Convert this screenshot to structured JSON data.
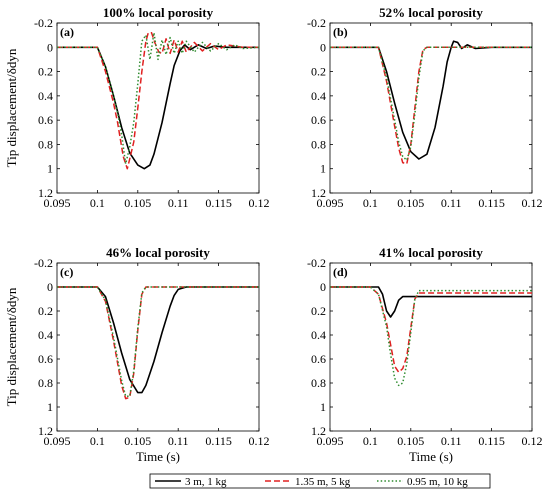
{
  "chart_data": [
    {
      "type": "line",
      "panel_label": "(a)",
      "title": "100% local porosity",
      "xlabel": "",
      "ylabel": "Tip displacement/δdyn",
      "xlim": [
        0.095,
        0.12
      ],
      "ylim": [
        -0.2,
        1.2
      ],
      "y_reversed": true,
      "x_ticks": [
        "0.095",
        "0.1",
        "0.105",
        "0.11",
        "0.115",
        "0.12"
      ],
      "y_ticks": [
        "-0.2",
        "0",
        "0.2",
        "0.4",
        "0.6",
        "0.8",
        "1",
        "1.2"
      ],
      "series": [
        {
          "name": "3 m, 1 kg",
          "color": "#000000",
          "x": [
            0.095,
            0.1,
            0.101,
            0.102,
            0.103,
            0.104,
            0.105,
            0.1058,
            0.1065,
            0.107,
            0.108,
            0.109,
            0.1095,
            0.1102,
            0.1108,
            0.1115,
            0.1125,
            0.1135,
            0.1145,
            0.116,
            0.118,
            0.12
          ],
          "y": [
            0,
            0,
            0.16,
            0.4,
            0.66,
            0.87,
            0.97,
            1.0,
            0.97,
            0.88,
            0.62,
            0.3,
            0.15,
            0.03,
            -0.02,
            0.02,
            -0.02,
            0.01,
            -0.01,
            0.0,
            0.0,
            0.0
          ]
        },
        {
          "name": "1.35 m, 5 kg",
          "color": "#e02020",
          "x": [
            0.095,
            0.1,
            0.101,
            0.102,
            0.1025,
            0.1032,
            0.1037,
            0.104,
            0.1045,
            0.105,
            0.1055,
            0.106,
            0.1063,
            0.1067,
            0.1071,
            0.1076,
            0.108,
            0.1085,
            0.109,
            0.1095,
            0.11,
            0.1105,
            0.111,
            0.112,
            0.113,
            0.114,
            0.115,
            0.116,
            0.118,
            0.12
          ],
          "y": [
            0,
            0,
            0.2,
            0.46,
            0.62,
            0.9,
            1.0,
            0.92,
            0.78,
            0.5,
            0.2,
            -0.05,
            -0.12,
            -0.12,
            -0.04,
            0.04,
            0.05,
            -0.07,
            0.05,
            -0.06,
            0.04,
            -0.05,
            0.04,
            -0.04,
            0.03,
            -0.03,
            0.02,
            -0.02,
            0.0,
            0.0
          ]
        },
        {
          "name": "0.95 m, 10 kg",
          "color": "#2e8b2e",
          "x": [
            0.095,
            0.1,
            0.101,
            0.102,
            0.1025,
            0.103,
            0.1035,
            0.104,
            0.1045,
            0.105,
            0.1055,
            0.106,
            0.1065,
            0.107,
            0.1075,
            0.108,
            0.1085,
            0.109,
            0.1095,
            0.11,
            0.1105,
            0.111,
            0.112,
            0.113,
            0.114,
            0.115,
            0.116,
            0.117,
            0.118,
            0.12
          ],
          "y": [
            0,
            0,
            0.16,
            0.4,
            0.54,
            0.72,
            0.96,
            0.82,
            0.62,
            0.3,
            -0.05,
            -0.1,
            0.1,
            -0.12,
            0.1,
            -0.06,
            0.06,
            -0.08,
            0.05,
            -0.05,
            0.05,
            -0.05,
            0.04,
            -0.04,
            0.03,
            -0.03,
            0.02,
            -0.02,
            0.01,
            0.0
          ]
        }
      ]
    },
    {
      "type": "line",
      "panel_label": "(b)",
      "title": "52% local porosity",
      "xlabel": "",
      "ylabel": "",
      "xlim": [
        0.095,
        0.12
      ],
      "ylim": [
        -0.2,
        1.2
      ],
      "y_reversed": true,
      "x_ticks": [
        "0.095",
        "0.1",
        "0.105",
        "0.11",
        "0.115",
        "0.12"
      ],
      "y_ticks": [
        "-0.2",
        "0",
        "0.2",
        "0.4",
        "0.6",
        "0.8",
        "1",
        "1.2"
      ],
      "series": [
        {
          "name": "3 m, 1 kg",
          "color": "#000000",
          "x": [
            0.095,
            0.101,
            0.102,
            0.103,
            0.104,
            0.105,
            0.106,
            0.107,
            0.108,
            0.109,
            0.1095,
            0.11,
            0.1103,
            0.1108,
            0.1113,
            0.112,
            0.113,
            0.115,
            0.12
          ],
          "y": [
            0,
            0,
            0.2,
            0.46,
            0.7,
            0.86,
            0.92,
            0.88,
            0.66,
            0.32,
            0.12,
            0.0,
            -0.05,
            -0.04,
            0.01,
            -0.02,
            0.01,
            0.0,
            0.0
          ]
        },
        {
          "name": "1.35 m, 5 kg",
          "color": "#e02020",
          "x": [
            0.095,
            0.101,
            0.102,
            0.103,
            0.1035,
            0.104,
            0.1045,
            0.105,
            0.1055,
            0.106,
            0.1065,
            0.107,
            0.108,
            0.12
          ],
          "y": [
            0,
            0,
            0.28,
            0.65,
            0.83,
            0.95,
            0.96,
            0.8,
            0.5,
            0.2,
            0.02,
            0.0,
            0.0,
            0.0
          ]
        },
        {
          "name": "0.95 m, 10 kg",
          "color": "#2e8b2e",
          "x": [
            0.095,
            0.101,
            0.102,
            0.103,
            0.1035,
            0.104,
            0.1045,
            0.105,
            0.1055,
            0.106,
            0.1065,
            0.107,
            0.108,
            0.12
          ],
          "y": [
            0,
            0,
            0.25,
            0.6,
            0.78,
            0.9,
            0.93,
            0.82,
            0.55,
            0.25,
            0.03,
            0.0,
            0.0,
            0.0
          ]
        }
      ]
    },
    {
      "type": "line",
      "panel_label": "(c)",
      "title": "46% local porosity",
      "xlabel": "Time (s)",
      "ylabel": "Tip displacement/δdyn",
      "xlim": [
        0.095,
        0.12
      ],
      "ylim": [
        -0.2,
        1.2
      ],
      "y_reversed": true,
      "x_ticks": [
        "0.095",
        "0.1",
        "0.105",
        "0.11",
        "0.115",
        "0.12"
      ],
      "y_ticks": [
        "-0.2",
        "0",
        "0.2",
        "0.4",
        "0.6",
        "0.8",
        "1",
        "1.2"
      ],
      "series": [
        {
          "name": "3 m, 1 kg",
          "color": "#000000",
          "x": [
            0.095,
            0.1,
            0.101,
            0.102,
            0.103,
            0.104,
            0.105,
            0.1055,
            0.106,
            0.107,
            0.108,
            0.109,
            0.1095,
            0.11,
            0.111,
            0.12
          ],
          "y": [
            0,
            0,
            0.08,
            0.3,
            0.55,
            0.77,
            0.88,
            0.88,
            0.82,
            0.62,
            0.38,
            0.16,
            0.07,
            0.02,
            0.0,
            0.0
          ]
        },
        {
          "name": "1.35 m, 5 kg",
          "color": "#e02020",
          "x": [
            0.095,
            0.1,
            0.101,
            0.102,
            0.103,
            0.1035,
            0.104,
            0.1045,
            0.105,
            0.1055,
            0.106,
            0.12
          ],
          "y": [
            0,
            0,
            0.12,
            0.45,
            0.82,
            0.93,
            0.92,
            0.72,
            0.36,
            0.06,
            0.0,
            0.0
          ]
        },
        {
          "name": "0.95 m, 10 kg",
          "color": "#2e8b2e",
          "x": [
            0.095,
            0.1,
            0.101,
            0.102,
            0.103,
            0.1035,
            0.104,
            0.1045,
            0.105,
            0.1055,
            0.106,
            0.12
          ],
          "y": [
            0,
            0,
            0.11,
            0.42,
            0.78,
            0.91,
            0.91,
            0.7,
            0.34,
            0.05,
            0.0,
            0.0
          ]
        }
      ]
    },
    {
      "type": "line",
      "panel_label": "(d)",
      "title": "41% local porosity",
      "xlabel": "Time (s)",
      "ylabel": "",
      "xlim": [
        0.095,
        0.12
      ],
      "ylim": [
        -0.2,
        1.2
      ],
      "y_reversed": true,
      "x_ticks": [
        "0.095",
        "0.1",
        "0.105",
        "0.11",
        "0.115",
        "0.12"
      ],
      "y_ticks": [
        "-0.2",
        "0",
        "0.2",
        "0.4",
        "0.6",
        "0.8",
        "1",
        "1.2"
      ],
      "series": [
        {
          "name": "3 m, 1 kg",
          "color": "#000000",
          "x": [
            0.095,
            0.101,
            0.1015,
            0.102,
            0.1025,
            0.103,
            0.1035,
            0.104,
            0.1045,
            0.105,
            0.12
          ],
          "y": [
            0,
            0,
            0.06,
            0.2,
            0.25,
            0.2,
            0.11,
            0.08,
            0.08,
            0.08,
            0.08
          ]
        },
        {
          "name": "1.35 m, 5 kg",
          "color": "#e02020",
          "x": [
            0.095,
            0.1,
            0.101,
            0.102,
            0.1025,
            0.103,
            0.1035,
            0.104,
            0.1045,
            0.105,
            0.1055,
            0.106,
            0.12
          ],
          "y": [
            0,
            0,
            0.06,
            0.3,
            0.48,
            0.66,
            0.71,
            0.68,
            0.58,
            0.34,
            0.1,
            0.05,
            0.05
          ]
        },
        {
          "name": "0.95 m, 10 kg",
          "color": "#2e8b2e",
          "x": [
            0.095,
            0.1,
            0.101,
            0.102,
            0.1025,
            0.103,
            0.1035,
            0.104,
            0.1045,
            0.105,
            0.1055,
            0.106,
            0.12
          ],
          "y": [
            0,
            0,
            0.06,
            0.33,
            0.56,
            0.76,
            0.82,
            0.8,
            0.64,
            0.38,
            0.1,
            0.03,
            0.03
          ]
        }
      ]
    }
  ],
  "legend": {
    "placement": "bottom",
    "entries": [
      {
        "label": "3 m, 1 kg",
        "color": "#000000",
        "style": "solid"
      },
      {
        "label": "1.35 m, 5 kg",
        "color": "#e02020",
        "style": "dashed"
      },
      {
        "label": "0.95 m, 10 kg",
        "color": "#2e8b2e",
        "style": "dotted"
      }
    ]
  }
}
